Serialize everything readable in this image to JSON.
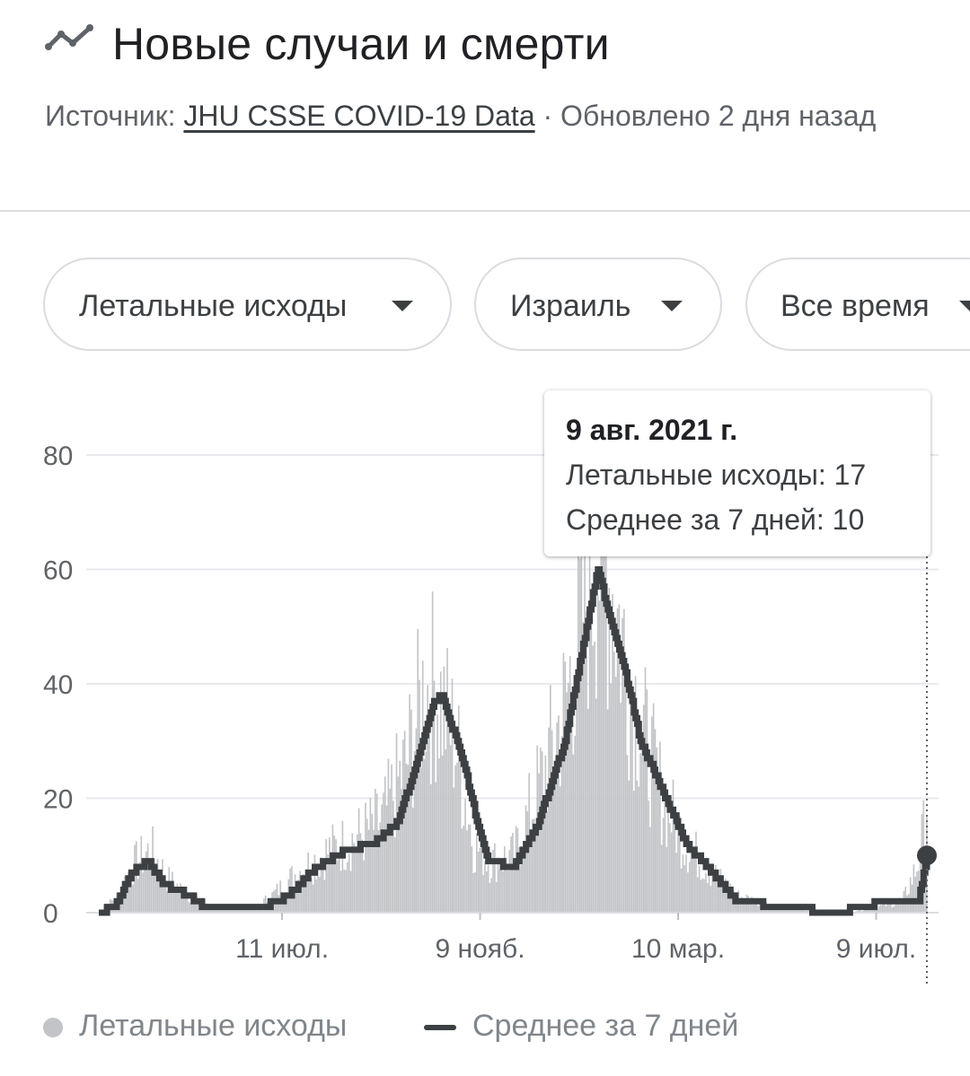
{
  "header": {
    "title": "Новые случаи и смерти",
    "icon": "trending-line-icon",
    "source_prefix": "Источник: ",
    "source_link": "JHU CSSE COVID-19 Data",
    "updated": " · Обновлено 2 дня назад"
  },
  "filters": {
    "metric": "Летальные исходы",
    "country": "Израиль",
    "range": "Все время"
  },
  "tooltip": {
    "date": "9 авг. 2021 г.",
    "line1": "Летальные исходы: 17",
    "line2": "Среднее за 7 дней: 10"
  },
  "legend": {
    "series1": "Летальные исходы",
    "series2": "Среднее за 7 дней"
  },
  "colors": {
    "bars": "#c2c4c7",
    "average_line": "#3c4043",
    "grid": "#e8eaed",
    "axis_text": "#5f6368"
  },
  "chart_data": {
    "type": "bar",
    "x_range": [
      "2020-03-21",
      "2021-08-09"
    ],
    "yticks": [
      0,
      20,
      40,
      60,
      80
    ],
    "ylim": [
      0,
      80
    ],
    "xticks": [
      {
        "date": "2020-07-11",
        "label": "11 июл."
      },
      {
        "date": "2020-11-09",
        "label": "9 нояб."
      },
      {
        "date": "2021-03-10",
        "label": "10 мар."
      },
      {
        "date": "2021-07-09",
        "label": "9 июл."
      }
    ],
    "series": [
      {
        "name": "Летальные исходы",
        "type": "bar",
        "keypoints": [
          [
            "2020-03-21",
            0
          ],
          [
            "2020-04-02",
            3
          ],
          [
            "2020-04-10",
            8
          ],
          [
            "2020-04-22",
            11
          ],
          [
            "2020-05-02",
            6
          ],
          [
            "2020-05-15",
            3
          ],
          [
            "2020-06-01",
            1
          ],
          [
            "2020-06-25",
            1
          ],
          [
            "2020-07-05",
            3
          ],
          [
            "2020-07-20",
            7
          ],
          [
            "2020-08-10",
            11
          ],
          [
            "2020-08-25",
            13
          ],
          [
            "2020-09-10",
            16
          ],
          [
            "2020-09-25",
            26
          ],
          [
            "2020-10-05",
            38
          ],
          [
            "2020-10-12",
            40
          ],
          [
            "2020-10-25",
            30
          ],
          [
            "2020-11-05",
            12
          ],
          [
            "2020-11-15",
            9
          ],
          [
            "2020-11-30",
            10
          ],
          [
            "2020-12-15",
            22
          ],
          [
            "2020-12-31",
            36
          ],
          [
            "2021-01-10",
            52
          ],
          [
            "2021-01-20",
            64
          ],
          [
            "2021-01-28",
            58
          ],
          [
            "2021-02-08",
            42
          ],
          [
            "2021-02-20",
            28
          ],
          [
            "2021-03-01",
            20
          ],
          [
            "2021-03-15",
            12
          ],
          [
            "2021-03-31",
            7
          ],
          [
            "2021-04-15",
            3
          ],
          [
            "2021-05-10",
            1
          ],
          [
            "2021-06-20",
            0
          ],
          [
            "2021-07-10",
            1
          ],
          [
            "2021-07-25",
            2
          ],
          [
            "2021-08-03",
            8
          ],
          [
            "2021-08-09",
            17
          ]
        ]
      },
      {
        "name": "Среднее за 7 дней",
        "type": "line",
        "keypoints": [
          [
            "2020-03-21",
            0
          ],
          [
            "2020-03-31",
            1
          ],
          [
            "2020-04-10",
            7
          ],
          [
            "2020-04-20",
            9
          ],
          [
            "2020-04-30",
            5
          ],
          [
            "2020-05-15",
            3
          ],
          [
            "2020-05-25",
            1
          ],
          [
            "2020-06-30",
            1
          ],
          [
            "2020-07-15",
            3
          ],
          [
            "2020-08-01",
            8
          ],
          [
            "2020-08-20",
            11
          ],
          [
            "2020-09-05",
            12
          ],
          [
            "2020-09-20",
            16
          ],
          [
            "2020-10-01",
            26
          ],
          [
            "2020-10-12",
            37
          ],
          [
            "2020-10-17",
            38
          ],
          [
            "2020-10-30",
            26
          ],
          [
            "2020-11-08",
            15
          ],
          [
            "2020-11-14",
            9
          ],
          [
            "2020-11-30",
            8
          ],
          [
            "2020-12-15",
            16
          ],
          [
            "2020-12-31",
            30
          ],
          [
            "2021-01-10",
            45
          ],
          [
            "2021-01-20",
            60
          ],
          [
            "2021-01-27",
            52
          ],
          [
            "2021-02-05",
            43
          ],
          [
            "2021-02-15",
            30
          ],
          [
            "2021-03-01",
            21
          ],
          [
            "2021-03-15",
            12
          ],
          [
            "2021-03-31",
            7
          ],
          [
            "2021-04-15",
            2
          ],
          [
            "2021-05-15",
            1
          ],
          [
            "2021-06-15",
            0
          ],
          [
            "2021-07-15",
            2
          ],
          [
            "2021-08-04",
            2
          ],
          [
            "2021-08-09",
            10
          ]
        ]
      }
    ],
    "highlight": {
      "date": "2021-08-09",
      "value": 10
    }
  }
}
